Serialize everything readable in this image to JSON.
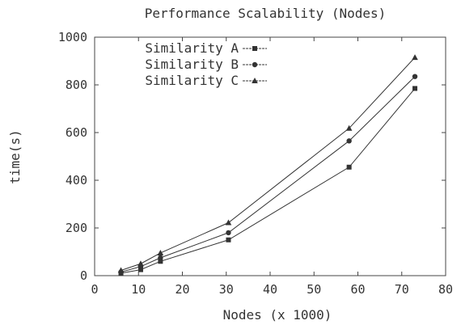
{
  "chart_data": {
    "type": "line",
    "title": "Performance Scalability (Nodes)",
    "xlabel": "Nodes (x 1000)",
    "ylabel": "time(s)",
    "xlim": [
      0,
      80
    ],
    "ylim": [
      0,
      1000
    ],
    "x_ticks": [
      "0",
      "10",
      "20",
      "30",
      "40",
      "50",
      "60",
      "70",
      "80"
    ],
    "y_ticks": [
      "0",
      "200",
      "400",
      "600",
      "800",
      "1000"
    ],
    "grid": false,
    "legend_position": "top-left",
    "series": [
      {
        "name": "Similarity A",
        "marker": "square",
        "color": "#333333",
        "x": [
          6,
          10.5,
          15,
          30.5,
          58,
          73
        ],
        "y": [
          10,
          25,
          60,
          150,
          455,
          785
        ]
      },
      {
        "name": "Similarity B",
        "marker": "circle",
        "color": "#333333",
        "x": [
          6,
          10.5,
          15,
          30.5,
          58,
          73
        ],
        "y": [
          15,
          38,
          75,
          180,
          565,
          835
        ]
      },
      {
        "name": "Similarity C",
        "marker": "triangle",
        "color": "#333333",
        "x": [
          6,
          10.5,
          15,
          30.5,
          58,
          73
        ],
        "y": [
          22,
          50,
          95,
          222,
          618,
          915
        ]
      }
    ]
  }
}
